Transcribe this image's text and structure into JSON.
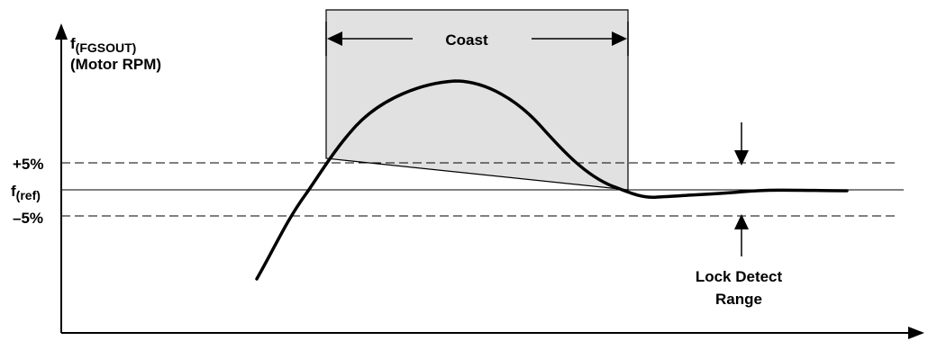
{
  "diagram": {
    "y_axis_label_main": "f",
    "y_axis_label_sub": "(FGSOUT)",
    "y_axis_label_line2": "(Motor RPM)",
    "ref_label_main": "f",
    "ref_label_sub": "(ref)",
    "plus_label": "+5%",
    "minus_label": "–5%",
    "coast_label": "Coast",
    "lock_detect_line1": "Lock Detect",
    "lock_detect_line2": "Range"
  },
  "colors": {
    "coast_fill": "#e1e1e1",
    "line": "#000000"
  }
}
